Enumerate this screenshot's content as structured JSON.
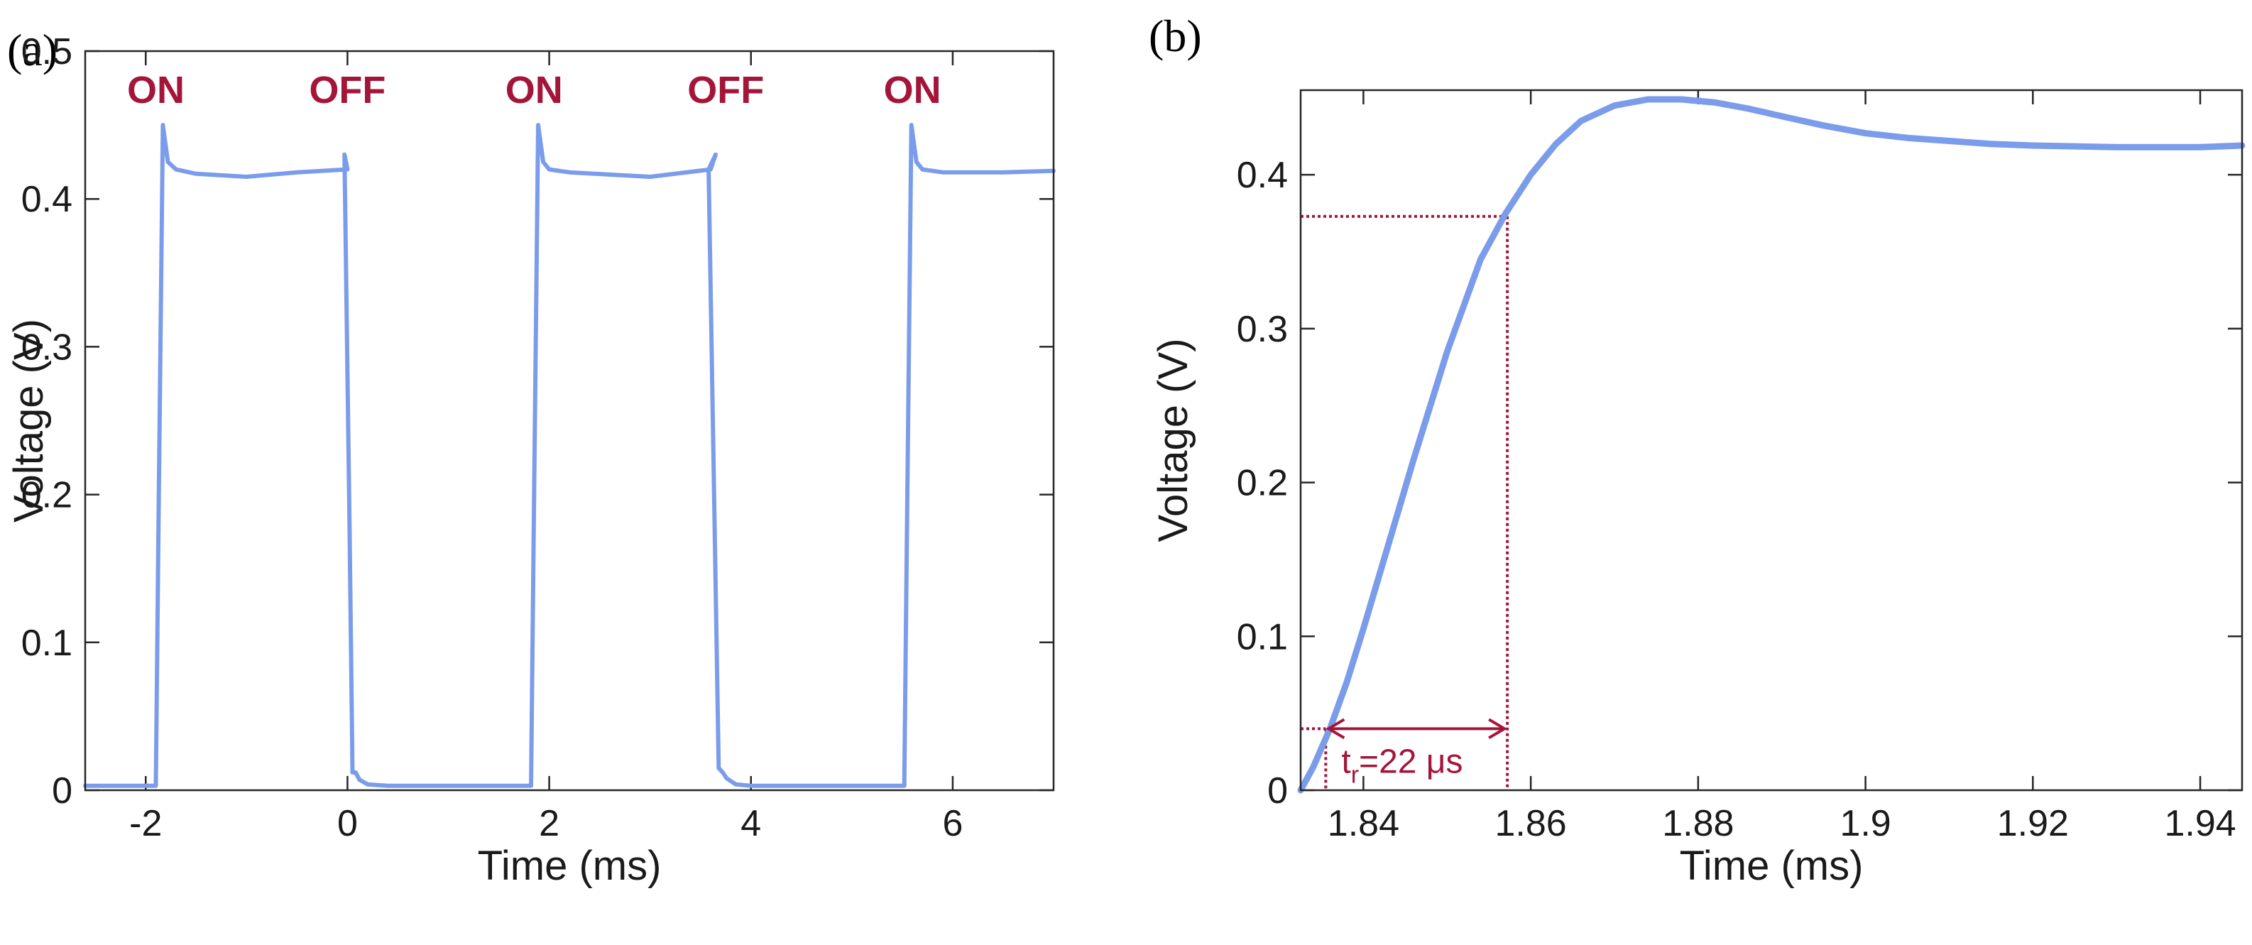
{
  "colors": {
    "signal": "#7b9cea",
    "annotation": "#a3163a",
    "axis": "#262626",
    "text": "#1a1a1a"
  },
  "chart_data": [
    {
      "panel_label": "(a)",
      "type": "line",
      "xlabel": "Time (ms)",
      "ylabel": "Voltage (V)",
      "xlim": [
        -2.6,
        7.0
      ],
      "ylim": [
        0,
        0.5
      ],
      "xticks": [
        -2,
        0,
        2,
        4,
        6
      ],
      "xtick_labels": [
        "-2",
        "0",
        "2",
        "4",
        "6"
      ],
      "yticks": [
        0,
        0.1,
        0.2,
        0.3,
        0.4,
        0.5
      ],
      "ytick_labels": [
        "0",
        "0.1",
        "0.2",
        "0.3",
        "0.4",
        "0.5"
      ],
      "grid": false,
      "series": [
        {
          "name": "Voltage",
          "x": [
            -2.6,
            -1.9,
            -1.87,
            -1.83,
            -1.78,
            -1.7,
            -1.5,
            -1.0,
            -0.5,
            0.0,
            -0.03,
            0.02,
            0.05,
            0.08,
            0.12,
            0.2,
            0.4,
            1.0,
            1.82,
            1.85,
            1.89,
            1.94,
            2.0,
            2.2,
            3.0,
            3.6,
            3.65,
            3.58,
            3.68,
            3.72,
            3.76,
            3.85,
            4.0,
            5.0,
            5.52,
            5.55,
            5.59,
            5.64,
            5.7,
            5.9,
            6.5,
            7.0
          ],
          "y": [
            0.003,
            0.003,
            0.2,
            0.45,
            0.425,
            0.42,
            0.417,
            0.415,
            0.418,
            0.42,
            0.43,
            0.18,
            0.012,
            0.012,
            0.007,
            0.004,
            0.003,
            0.003,
            0.003,
            0.2,
            0.45,
            0.425,
            0.42,
            0.418,
            0.415,
            0.42,
            0.43,
            0.42,
            0.015,
            0.012,
            0.008,
            0.004,
            0.003,
            0.003,
            0.003,
            0.2,
            0.45,
            0.425,
            0.42,
            0.418,
            0.418,
            0.419
          ]
        }
      ],
      "annotations": [
        {
          "text": "ON",
          "x": -1.9,
          "y": 0.465
        },
        {
          "text": "OFF",
          "x": 0.0,
          "y": 0.465
        },
        {
          "text": "ON",
          "x": 1.85,
          "y": 0.465
        },
        {
          "text": "OFF",
          "x": 3.75,
          "y": 0.465
        },
        {
          "text": "ON",
          "x": 5.6,
          "y": 0.465
        }
      ]
    },
    {
      "panel_label": "(b)",
      "type": "line",
      "xlabel": "Time (ms)",
      "ylabel": "Voltage (V)",
      "xlim": [
        1.8325,
        1.945
      ],
      "ylim": [
        0,
        0.455
      ],
      "xticks": [
        1.84,
        1.86,
        1.88,
        1.9,
        1.92,
        1.94
      ],
      "xtick_labels": [
        "1.84",
        "1.86",
        "1.88",
        "1.9",
        "1.92",
        "1.94"
      ],
      "yticks": [
        0,
        0.1,
        0.2,
        0.3,
        0.4
      ],
      "ytick_labels": [
        "0",
        "0.1",
        "0.2",
        "0.3",
        "0.4"
      ],
      "grid": false,
      "series": [
        {
          "name": "Voltage",
          "x": [
            1.8325,
            1.834,
            1.836,
            1.838,
            1.84,
            1.843,
            1.846,
            1.85,
            1.854,
            1.857,
            1.86,
            1.863,
            1.866,
            1.87,
            1.874,
            1.878,
            1.882,
            1.886,
            1.89,
            1.895,
            1.9,
            1.905,
            1.91,
            1.915,
            1.92,
            1.93,
            1.94,
            1.945
          ],
          "y": [
            0.0,
            0.015,
            0.04,
            0.07,
            0.105,
            0.16,
            0.215,
            0.285,
            0.345,
            0.375,
            0.4,
            0.42,
            0.435,
            0.445,
            0.449,
            0.449,
            0.447,
            0.443,
            0.438,
            0.432,
            0.427,
            0.424,
            0.422,
            0.42,
            0.419,
            0.418,
            0.418,
            0.419
          ]
        }
      ],
      "rise_time": {
        "label": "t",
        "subscript": "r",
        "value_text": "=22 μs",
        "t_start": 1.8355,
        "t_end": 1.8572,
        "v_low": 0.04,
        "v_high": 0.373,
        "arrow_y": 0.04
      }
    }
  ]
}
